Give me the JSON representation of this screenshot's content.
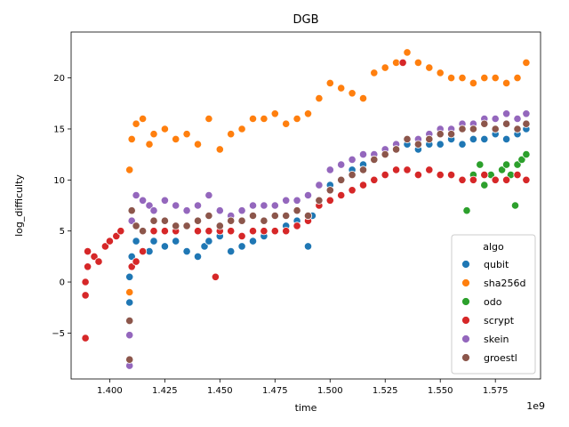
{
  "chart_data": {
    "type": "scatter",
    "title": "DGB",
    "xlabel": "time",
    "ylabel": "log_difficulty",
    "x_offset_label": "1e9",
    "x_unit_multiplier": 1000000000,
    "xlim": [
      1.3825,
      1.5955
    ],
    "ylim": [
      -9.5,
      24.5
    ],
    "x_ticks": [
      1.4,
      1.425,
      1.45,
      1.475,
      1.5,
      1.525,
      1.55,
      1.575
    ],
    "x_tick_labels": [
      "1.400",
      "1.425",
      "1.450",
      "1.475",
      "1.500",
      "1.525",
      "1.550",
      "1.575"
    ],
    "y_ticks": [
      -5,
      0,
      5,
      10,
      15,
      20
    ],
    "y_tick_labels": [
      "−5",
      "0",
      "5",
      "10",
      "15",
      "20"
    ],
    "grid": false,
    "legend": {
      "title": "algo",
      "placement": "lower-right"
    },
    "series": [
      {
        "name": "qubit",
        "color": "#1f77b4",
        "points": [
          [
            1.409,
            -2.0
          ],
          [
            1.409,
            0.5
          ],
          [
            1.41,
            2.5
          ],
          [
            1.412,
            4.0
          ],
          [
            1.415,
            5.0
          ],
          [
            1.418,
            3.0
          ],
          [
            1.42,
            4.0
          ],
          [
            1.425,
            3.5
          ],
          [
            1.43,
            4.0
          ],
          [
            1.435,
            3.0
          ],
          [
            1.44,
            2.5
          ],
          [
            1.443,
            3.5
          ],
          [
            1.445,
            4.0
          ],
          [
            1.45,
            4.5
          ],
          [
            1.455,
            3.0
          ],
          [
            1.46,
            3.5
          ],
          [
            1.465,
            4.0
          ],
          [
            1.47,
            4.5
          ],
          [
            1.475,
            5.0
          ],
          [
            1.48,
            5.5
          ],
          [
            1.485,
            6.0
          ],
          [
            1.49,
            3.5
          ],
          [
            1.492,
            6.5
          ],
          [
            1.495,
            8.0
          ],
          [
            1.5,
            9.5
          ],
          [
            1.505,
            10.0
          ],
          [
            1.51,
            11.0
          ],
          [
            1.515,
            11.5
          ],
          [
            1.52,
            12.0
          ],
          [
            1.525,
            12.5
          ],
          [
            1.53,
            13.0
          ],
          [
            1.535,
            13.5
          ],
          [
            1.54,
            13.0
          ],
          [
            1.545,
            13.5
          ],
          [
            1.55,
            13.5
          ],
          [
            1.555,
            14.0
          ],
          [
            1.56,
            13.5
          ],
          [
            1.565,
            14.0
          ],
          [
            1.57,
            14.0
          ],
          [
            1.575,
            14.5
          ],
          [
            1.58,
            14.0
          ],
          [
            1.585,
            14.5
          ],
          [
            1.589,
            15.0
          ]
        ]
      },
      {
        "name": "sha256d",
        "color": "#ff7f0e",
        "points": [
          [
            1.409,
            -1.0
          ],
          [
            1.409,
            11.0
          ],
          [
            1.41,
            14.0
          ],
          [
            1.412,
            15.5
          ],
          [
            1.415,
            16.0
          ],
          [
            1.418,
            13.5
          ],
          [
            1.42,
            14.5
          ],
          [
            1.425,
            15.0
          ],
          [
            1.43,
            14.0
          ],
          [
            1.435,
            14.5
          ],
          [
            1.44,
            13.5
          ],
          [
            1.445,
            16.0
          ],
          [
            1.45,
            13.0
          ],
          [
            1.455,
            14.5
          ],
          [
            1.46,
            15.0
          ],
          [
            1.465,
            16.0
          ],
          [
            1.47,
            16.0
          ],
          [
            1.475,
            16.5
          ],
          [
            1.48,
            15.5
          ],
          [
            1.485,
            16.0
          ],
          [
            1.49,
            16.5
          ],
          [
            1.495,
            18.0
          ],
          [
            1.5,
            19.5
          ],
          [
            1.505,
            19.0
          ],
          [
            1.51,
            18.5
          ],
          [
            1.515,
            18.0
          ],
          [
            1.52,
            20.5
          ],
          [
            1.525,
            21.0
          ],
          [
            1.53,
            21.5
          ],
          [
            1.535,
            22.5
          ],
          [
            1.54,
            21.5
          ],
          [
            1.545,
            21.0
          ],
          [
            1.55,
            20.5
          ],
          [
            1.555,
            20.0
          ],
          [
            1.56,
            20.0
          ],
          [
            1.565,
            19.5
          ],
          [
            1.57,
            20.0
          ],
          [
            1.575,
            20.0
          ],
          [
            1.58,
            19.5
          ],
          [
            1.585,
            20.0
          ],
          [
            1.589,
            21.5
          ]
        ]
      },
      {
        "name": "odo",
        "color": "#2ca02c",
        "points": [
          [
            1.562,
            7.0
          ],
          [
            1.565,
            10.5
          ],
          [
            1.568,
            11.5
          ],
          [
            1.57,
            9.5
          ],
          [
            1.573,
            10.5
          ],
          [
            1.575,
            10.0
          ],
          [
            1.578,
            11.0
          ],
          [
            1.58,
            11.5
          ],
          [
            1.582,
            10.5
          ],
          [
            1.584,
            7.5
          ],
          [
            1.585,
            11.5
          ],
          [
            1.587,
            12.0
          ],
          [
            1.589,
            12.5
          ]
        ]
      },
      {
        "name": "scrypt",
        "color": "#d62728",
        "points": [
          [
            1.389,
            -5.5
          ],
          [
            1.389,
            -1.3
          ],
          [
            1.389,
            0.0
          ],
          [
            1.39,
            1.5
          ],
          [
            1.39,
            3.0
          ],
          [
            1.393,
            2.5
          ],
          [
            1.395,
            2.0
          ],
          [
            1.398,
            3.5
          ],
          [
            1.4,
            4.0
          ],
          [
            1.403,
            4.5
          ],
          [
            1.405,
            5.0
          ],
          [
            1.41,
            1.5
          ],
          [
            1.412,
            2.0
          ],
          [
            1.415,
            3.0
          ],
          [
            1.42,
            5.0
          ],
          [
            1.425,
            5.0
          ],
          [
            1.43,
            5.0
          ],
          [
            1.435,
            5.5
          ],
          [
            1.44,
            5.0
          ],
          [
            1.445,
            5.0
          ],
          [
            1.448,
            0.5
          ],
          [
            1.45,
            5.0
          ],
          [
            1.455,
            5.0
          ],
          [
            1.46,
            4.5
          ],
          [
            1.465,
            5.0
          ],
          [
            1.47,
            5.0
          ],
          [
            1.475,
            5.0
          ],
          [
            1.48,
            5.0
          ],
          [
            1.485,
            5.5
          ],
          [
            1.49,
            6.0
          ],
          [
            1.495,
            7.5
          ],
          [
            1.5,
            8.0
          ],
          [
            1.505,
            8.5
          ],
          [
            1.51,
            9.0
          ],
          [
            1.515,
            9.5
          ],
          [
            1.52,
            10.0
          ],
          [
            1.525,
            10.5
          ],
          [
            1.53,
            11.0
          ],
          [
            1.533,
            21.5
          ],
          [
            1.535,
            11.0
          ],
          [
            1.54,
            10.5
          ],
          [
            1.545,
            11.0
          ],
          [
            1.55,
            10.5
          ],
          [
            1.555,
            10.5
          ],
          [
            1.56,
            10.0
          ],
          [
            1.565,
            10.0
          ],
          [
            1.57,
            10.5
          ],
          [
            1.575,
            10.0
          ],
          [
            1.58,
            10.0
          ],
          [
            1.585,
            10.5
          ],
          [
            1.589,
            10.0
          ]
        ]
      },
      {
        "name": "skein",
        "color": "#9467bd",
        "points": [
          [
            1.409,
            -8.2
          ],
          [
            1.409,
            -5.2
          ],
          [
            1.41,
            6.0
          ],
          [
            1.412,
            8.5
          ],
          [
            1.415,
            8.0
          ],
          [
            1.418,
            7.5
          ],
          [
            1.42,
            7.0
          ],
          [
            1.425,
            8.0
          ],
          [
            1.43,
            7.5
          ],
          [
            1.435,
            7.0
          ],
          [
            1.44,
            7.5
          ],
          [
            1.445,
            8.5
          ],
          [
            1.45,
            7.0
          ],
          [
            1.455,
            6.5
          ],
          [
            1.46,
            7.0
          ],
          [
            1.465,
            7.5
          ],
          [
            1.47,
            7.5
          ],
          [
            1.475,
            7.5
          ],
          [
            1.48,
            8.0
          ],
          [
            1.485,
            8.0
          ],
          [
            1.49,
            8.5
          ],
          [
            1.495,
            9.5
          ],
          [
            1.5,
            11.0
          ],
          [
            1.505,
            11.5
          ],
          [
            1.51,
            12.0
          ],
          [
            1.515,
            12.5
          ],
          [
            1.52,
            12.5
          ],
          [
            1.525,
            13.0
          ],
          [
            1.53,
            13.5
          ],
          [
            1.535,
            14.0
          ],
          [
            1.54,
            14.0
          ],
          [
            1.545,
            14.5
          ],
          [
            1.55,
            15.0
          ],
          [
            1.555,
            15.0
          ],
          [
            1.56,
            15.5
          ],
          [
            1.565,
            15.5
          ],
          [
            1.57,
            16.0
          ],
          [
            1.575,
            16.0
          ],
          [
            1.58,
            16.5
          ],
          [
            1.585,
            16.0
          ],
          [
            1.589,
            16.5
          ]
        ]
      },
      {
        "name": "groestl",
        "color": "#8c564b",
        "points": [
          [
            1.409,
            -7.6
          ],
          [
            1.409,
            -3.8
          ],
          [
            1.41,
            7.0
          ],
          [
            1.412,
            5.5
          ],
          [
            1.415,
            5.0
          ],
          [
            1.42,
            6.0
          ],
          [
            1.425,
            6.0
          ],
          [
            1.43,
            5.5
          ],
          [
            1.435,
            5.5
          ],
          [
            1.44,
            6.0
          ],
          [
            1.445,
            6.5
          ],
          [
            1.45,
            5.5
          ],
          [
            1.455,
            6.0
          ],
          [
            1.46,
            6.0
          ],
          [
            1.465,
            6.5
          ],
          [
            1.47,
            6.0
          ],
          [
            1.475,
            6.5
          ],
          [
            1.48,
            6.5
          ],
          [
            1.485,
            7.0
          ],
          [
            1.49,
            6.5
          ],
          [
            1.495,
            8.0
          ],
          [
            1.5,
            9.0
          ],
          [
            1.505,
            10.0
          ],
          [
            1.51,
            10.5
          ],
          [
            1.515,
            11.0
          ],
          [
            1.52,
            12.0
          ],
          [
            1.525,
            12.5
          ],
          [
            1.53,
            13.0
          ],
          [
            1.535,
            14.0
          ],
          [
            1.54,
            13.5
          ],
          [
            1.545,
            14.0
          ],
          [
            1.55,
            14.5
          ],
          [
            1.555,
            14.5
          ],
          [
            1.56,
            15.0
          ],
          [
            1.565,
            15.0
          ],
          [
            1.57,
            15.5
          ],
          [
            1.575,
            15.0
          ],
          [
            1.58,
            15.5
          ],
          [
            1.585,
            15.0
          ],
          [
            1.589,
            15.5
          ]
        ]
      }
    ]
  }
}
